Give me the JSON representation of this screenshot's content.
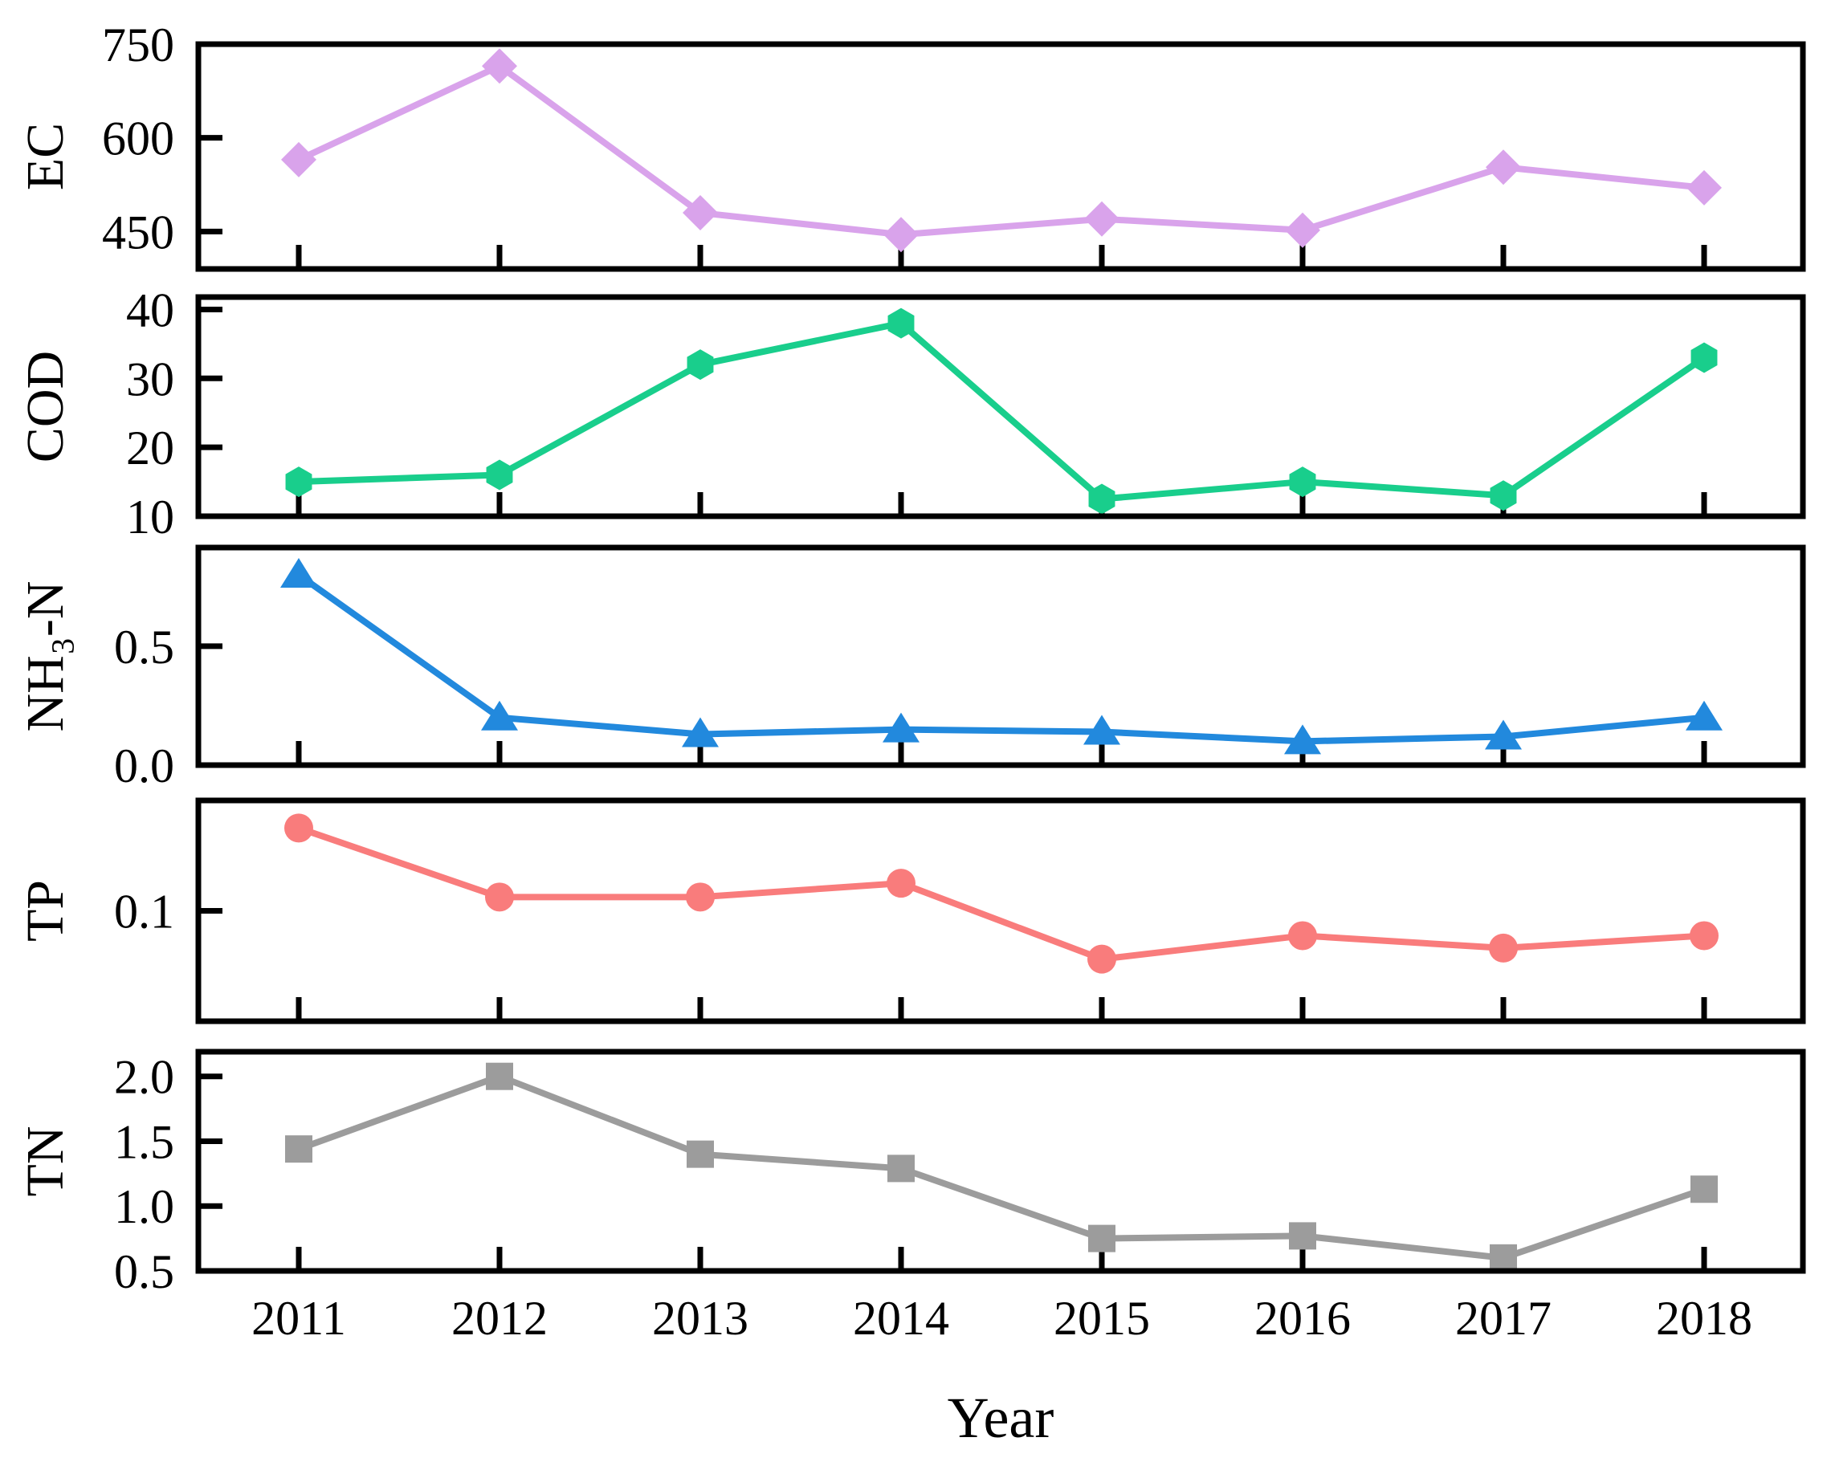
{
  "figure": {
    "xlabel": "Year",
    "background": "#ffffff",
    "x_tick_labels": [
      "2011",
      "2012",
      "2013",
      "2014",
      "2015",
      "2016",
      "2017",
      "2018"
    ]
  },
  "chart_data": [
    {
      "type": "line",
      "key": "ec",
      "ylabel": "EC",
      "marker": "diamond",
      "color": "#D9A3EB",
      "x": [
        2011,
        2012,
        2013,
        2014,
        2015,
        2016,
        2017,
        2018
      ],
      "values": [
        565,
        715,
        480,
        445,
        470,
        452,
        553,
        520
      ],
      "ylim": [
        390,
        750
      ],
      "yticks": [
        450,
        600,
        750
      ],
      "ytick_labels": [
        "450",
        "600",
        "750"
      ],
      "grid": false,
      "legend": "none"
    },
    {
      "type": "line",
      "key": "cod",
      "ylabel": "COD",
      "marker": "hexagon",
      "color": "#19CE8C",
      "x": [
        2011,
        2012,
        2013,
        2014,
        2015,
        2016,
        2017,
        2018
      ],
      "values": [
        15,
        16,
        32,
        38,
        12.5,
        15,
        13,
        33
      ],
      "ylim": [
        10,
        41.8
      ],
      "yticks": [
        10,
        20,
        30,
        40
      ],
      "ytick_labels": [
        "10",
        "20",
        "30",
        "40"
      ],
      "grid": false,
      "legend": "none"
    },
    {
      "type": "line",
      "key": "nh3n",
      "ylabel": "NH₃-N",
      "marker": "triangle",
      "color": "#2289DD",
      "x": [
        2011,
        2012,
        2013,
        2014,
        2015,
        2016,
        2017,
        2018
      ],
      "values": [
        0.8,
        0.2,
        0.13,
        0.15,
        0.14,
        0.1,
        0.12,
        0.2
      ],
      "ylim": [
        0,
        0.915
      ],
      "yticks": [
        0,
        0.5
      ],
      "ytick_labels": [
        "0.0",
        "0.5"
      ],
      "grid": false,
      "legend": "none"
    },
    {
      "type": "line",
      "key": "tp",
      "ylabel": "TP",
      "marker": "circle",
      "color": "#F97C7C",
      "x": [
        2011,
        2012,
        2013,
        2014,
        2015,
        2016,
        2017,
        2018
      ],
      "values": [
        0.16,
        0.11,
        0.11,
        0.12,
        0.065,
        0.082,
        0.073,
        0.082
      ],
      "ylim": [
        0.02,
        0.18
      ],
      "yticks": [
        0.1
      ],
      "ytick_labels": [
        "0.1"
      ],
      "grid": false,
      "legend": "none"
    },
    {
      "type": "line",
      "key": "tn",
      "ylabel": "TN",
      "marker": "square",
      "color": "#9C9C9C",
      "x": [
        2011,
        2012,
        2013,
        2014,
        2015,
        2016,
        2017,
        2018
      ],
      "values": [
        1.44,
        2.0,
        1.4,
        1.29,
        0.75,
        0.77,
        0.6,
        1.13
      ],
      "ylim": [
        0.5,
        2.19
      ],
      "yticks": [
        0.5,
        1.0,
        1.5,
        2.0
      ],
      "ytick_labels": [
        "0.5",
        "1.0",
        "1.5",
        "2.0"
      ],
      "grid": false,
      "legend": "none"
    }
  ]
}
